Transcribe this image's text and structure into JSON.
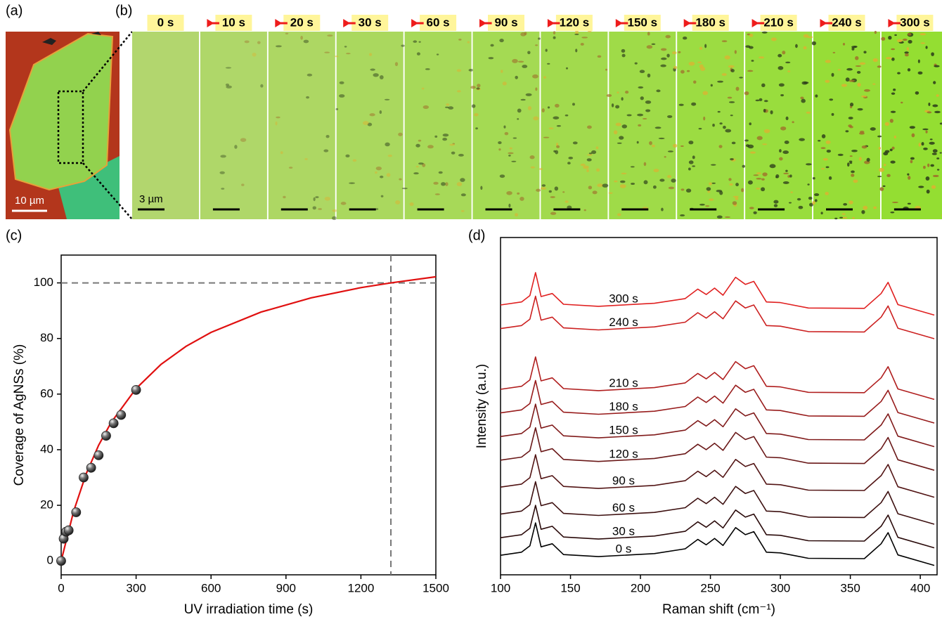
{
  "panel_labels": [
    "(a)",
    "(b)",
    "(c)",
    "(d)"
  ],
  "image_a": {
    "scale_bar": "10 µm"
  },
  "image_b": {
    "times": [
      "0 s",
      "10 s",
      "20 s",
      "30 s",
      "60 s",
      "90 s",
      "120 s",
      "150 s",
      "180 s",
      "210 s",
      "240 s",
      "300 s"
    ],
    "scale_bar": "3 µm"
  },
  "chart_data": [
    {
      "type": "scatter",
      "x_label": "UV irradiation time (s)",
      "y_label": "Coverage of AgNSs (%)",
      "x": [
        0,
        10,
        20,
        30,
        60,
        90,
        120,
        150,
        180,
        210,
        240,
        300
      ],
      "values": [
        0,
        8,
        10.5,
        11,
        17.5,
        30,
        33.5,
        38,
        45,
        49.5,
        52.5,
        61.5
      ],
      "color": "#222222",
      "fit": {
        "x": [
          0,
          50,
          100,
          150,
          200,
          300,
          400,
          500,
          600,
          800,
          1000,
          1200,
          1320,
          1500
        ],
        "values": [
          0,
          17.9,
          31.3,
          41.6,
          49.8,
          62.0,
          70.7,
          77.2,
          82.2,
          89.5,
          94.6,
          98.3,
          100.0,
          102.2
        ],
        "color": "#e01010"
      },
      "reference_lines": {
        "x": 1320,
        "y": 100
      },
      "xlim": [
        0,
        1500
      ],
      "xticks": [
        0,
        300,
        600,
        900,
        1200,
        1500
      ],
      "ylim": [
        -5,
        110
      ],
      "yticks": [
        0,
        20,
        40,
        60,
        80,
        100
      ]
    },
    {
      "type": "line",
      "x_label": "Raman shift (cm⁻¹)",
      "y_label": "Intensity (a.u.)",
      "x": [
        100,
        115,
        121,
        125,
        129,
        137,
        145,
        170,
        210,
        232,
        241,
        247,
        253,
        259,
        268,
        275,
        281,
        290,
        300,
        320,
        360,
        372,
        377,
        384,
        410
      ],
      "series": [
        {
          "name": "0 s",
          "color": "#000000",
          "values": [
            5.8,
            6.7,
            8.6,
            15.4,
            8.3,
            9.2,
            6,
            5.4,
            6.3,
            7.7,
            10.5,
            8.9,
            10.8,
            8.7,
            14,
            11.9,
            12.8,
            6.7,
            6.5,
            4.9,
            4.8,
            9.2,
            12.5,
            5.9,
            2.8
          ]
        },
        {
          "name": "30 s",
          "color": "#2a0a0a",
          "values": [
            11,
            11.9,
            13.8,
            20.6,
            13.5,
            14.4,
            11.2,
            10.6,
            11.5,
            12.9,
            15.7,
            14.1,
            16,
            13.9,
            19.2,
            17.1,
            18,
            11.9,
            11.7,
            10.1,
            10,
            14.4,
            17.7,
            11.1,
            8
          ]
        },
        {
          "name": "60 s",
          "color": "#3d1010",
          "values": [
            18,
            18.9,
            20.8,
            27.6,
            20.5,
            21.4,
            18.2,
            17.6,
            18.5,
            19.9,
            22.7,
            21.1,
            23,
            20.9,
            26.2,
            24.1,
            25,
            18.9,
            18.7,
            17.1,
            17,
            21.4,
            24.7,
            18.1,
            15
          ]
        },
        {
          "name": "90 s",
          "color": "#521414",
          "values": [
            26,
            26.9,
            28.8,
            35.6,
            28.5,
            29.4,
            26.2,
            25.6,
            26.5,
            27.9,
            30.7,
            29.1,
            31,
            28.9,
            34.2,
            32.1,
            33,
            26.9,
            26.7,
            25.1,
            25,
            29.4,
            32.7,
            26.1,
            23
          ]
        },
        {
          "name": "120 s",
          "color": "#6a1818",
          "values": [
            34,
            34.9,
            36.8,
            43.6,
            36.5,
            37.4,
            34.2,
            33.6,
            34.5,
            35.9,
            38.7,
            37.1,
            39,
            36.9,
            42.2,
            40.1,
            41,
            34.9,
            34.7,
            33.1,
            33,
            37.4,
            40.7,
            34.1,
            31
          ]
        },
        {
          "name": "150 s",
          "color": "#801a1a",
          "values": [
            41,
            41.9,
            43.8,
            50.6,
            43.5,
            44.4,
            41.2,
            40.6,
            41.5,
            42.9,
            45.7,
            44.1,
            46,
            43.9,
            49.2,
            47.1,
            48,
            41.9,
            41.7,
            40.1,
            40,
            44.4,
            47.7,
            41.1,
            38
          ]
        },
        {
          "name": "180 s",
          "color": "#981c1c",
          "values": [
            48,
            48.9,
            50.8,
            57.6,
            50.5,
            51.4,
            48.2,
            47.6,
            48.5,
            49.9,
            52.7,
            51.1,
            53,
            50.9,
            56.2,
            54.1,
            55,
            48.9,
            48.7,
            47.1,
            47,
            51.4,
            54.7,
            48.1,
            45
          ]
        },
        {
          "name": "210 s",
          "color": "#b01e1e",
          "values": [
            55,
            55.9,
            57.8,
            64.6,
            57.5,
            58.4,
            55.2,
            54.6,
            55.5,
            56.9,
            59.7,
            58.1,
            60,
            57.9,
            63.2,
            61.1,
            62,
            55.9,
            55.7,
            54.1,
            54,
            58.4,
            61.7,
            55.1,
            52
          ]
        },
        {
          "name": "240 s",
          "color": "#cc2020",
          "values": [
            73,
            73.9,
            75.8,
            82.6,
            75.5,
            76.4,
            73.2,
            72.6,
            73.5,
            74.9,
            77.7,
            76.1,
            78,
            75.9,
            81.2,
            79.1,
            80,
            73.9,
            73.7,
            72.1,
            72,
            76.4,
            79.7,
            73.1,
            70
          ]
        },
        {
          "name": "300 s",
          "color": "#e02020",
          "values": [
            80,
            80.9,
            82.8,
            89.6,
            82.5,
            83.4,
            80.2,
            79.6,
            80.5,
            81.9,
            84.7,
            83.1,
            85,
            82.9,
            88.2,
            86.1,
            87,
            80.9,
            80.7,
            79.1,
            79,
            83.4,
            86.7,
            80.1,
            77
          ]
        }
      ],
      "xlim": [
        100,
        412
      ],
      "xticks": [
        100,
        150,
        200,
        250,
        300,
        350,
        400
      ],
      "ylim": [
        0,
        100
      ]
    }
  ]
}
